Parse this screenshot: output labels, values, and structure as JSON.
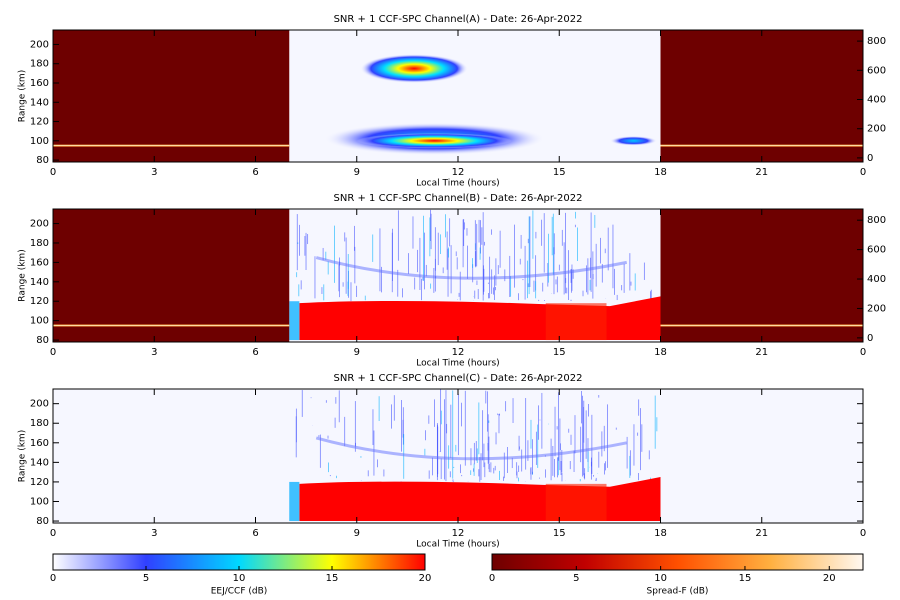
{
  "chart_data": [
    {
      "type": "heatmap",
      "title": "SNR + 1 CCF-SPC Channel(A) - Date: 26-Apr-2022",
      "x_label": "Local Time (hours)",
      "y_label": "Range (km)",
      "xlim": [
        0,
        24
      ],
      "xticks": [
        0,
        3,
        6,
        9,
        12,
        15,
        18,
        21,
        {
          "value": 24,
          "label": "0"
        }
      ],
      "ylim": [
        78,
        215
      ],
      "yticks": [
        80,
        100,
        120,
        140,
        160,
        180,
        200
      ],
      "y2lim": [
        -28,
        876
      ],
      "y2ticks": [
        0,
        200,
        400,
        600,
        800
      ],
      "night_color": "#6e0000"
    },
    {
      "type": "heatmap",
      "title": "SNR + 1 CCF-SPC Channel(B) - Date: 26-Apr-2022",
      "x_label": "Local Time (hours)",
      "y_label": "Range (km)",
      "xlim": [
        0,
        24
      ],
      "xticks": [
        0,
        3,
        6,
        9,
        12,
        15,
        18,
        21,
        {
          "value": 24,
          "label": "0"
        }
      ],
      "ylim": [
        78,
        215
      ],
      "yticks": [
        80,
        100,
        120,
        140,
        160,
        180,
        200
      ],
      "y2lim": [
        -28,
        876
      ],
      "y2ticks": [
        0,
        200,
        400,
        600,
        800
      ],
      "night_color": "#6e0000"
    },
    {
      "type": "heatmap",
      "title": "SNR + 1 CCF-SPC Channel(C) - Date: 26-Apr-2022",
      "x_label": "Local Time (hours)",
      "y_label": "Range (km)",
      "xlim": [
        0,
        24
      ],
      "xticks": [
        0,
        3,
        6,
        9,
        12,
        15,
        18,
        21,
        {
          "value": 24,
          "label": "0"
        }
      ],
      "ylim": [
        78,
        215
      ],
      "yticks": [
        80,
        100,
        120,
        140,
        160,
        180,
        200
      ]
    },
    {
      "type": "colorbar",
      "label": "EEJ/CCF (dB)",
      "xlim": [
        0,
        20
      ],
      "xticks": [
        0,
        5,
        10,
        15,
        20
      ],
      "colors": [
        "#ffffff",
        "#3040ff",
        "#00d8ff",
        "#ffff00",
        "#ff0000"
      ]
    },
    {
      "type": "colorbar",
      "label": "Spread-F (dB)",
      "xlim": [
        0,
        22
      ],
      "xticks": [
        0,
        5,
        10,
        15,
        20
      ],
      "colors": [
        "#6e0000",
        "#c00000",
        "#ff5000",
        "#ffb040",
        "#fff8f0"
      ]
    }
  ]
}
